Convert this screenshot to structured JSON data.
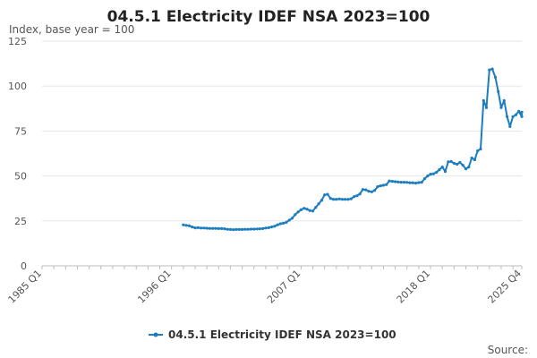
{
  "chart_data": {
    "type": "line",
    "title": "04.5.1 Electricity IDEF NSA 2023=100",
    "subtitle": "Index, base year = 100",
    "source_label": "Source:",
    "ylim": [
      0,
      125
    ],
    "yticks": [
      0,
      25,
      50,
      75,
      100,
      125
    ],
    "xlim": [
      1985,
      2025.75
    ],
    "xticks": [
      {
        "label": "1985 Q1",
        "value": 1985
      },
      {
        "label": "1996 Q1",
        "value": 1996
      },
      {
        "label": "2007 Q1",
        "value": 2007
      },
      {
        "label": "2018 Q1",
        "value": 2018
      },
      {
        "label": "2025 Q4",
        "value": 2025.75
      }
    ],
    "x_grid": false,
    "y_grid": true,
    "legend_position": "bottom-center",
    "series": [
      {
        "name": "04.5.1 Electricity IDEF NSA 2023=100",
        "color": "#1c7dbf",
        "points": [
          [
            1997.0,
            22.8
          ],
          [
            1997.25,
            22.5
          ],
          [
            1997.5,
            22.3
          ],
          [
            1997.75,
            21.6
          ],
          [
            1998.0,
            21.1
          ],
          [
            1998.25,
            21.2
          ],
          [
            1998.5,
            21.0
          ],
          [
            1998.75,
            21.0
          ],
          [
            1999.0,
            20.9
          ],
          [
            1999.25,
            20.8
          ],
          [
            1999.5,
            20.8
          ],
          [
            1999.75,
            20.8
          ],
          [
            2000.0,
            20.7
          ],
          [
            2000.25,
            20.7
          ],
          [
            2000.5,
            20.6
          ],
          [
            2000.75,
            20.3
          ],
          [
            2001.0,
            20.2
          ],
          [
            2001.25,
            20.1
          ],
          [
            2001.5,
            20.2
          ],
          [
            2001.75,
            20.2
          ],
          [
            2002.0,
            20.2
          ],
          [
            2002.25,
            20.3
          ],
          [
            2002.5,
            20.3
          ],
          [
            2002.75,
            20.4
          ],
          [
            2003.0,
            20.4
          ],
          [
            2003.25,
            20.5
          ],
          [
            2003.5,
            20.6
          ],
          [
            2003.75,
            20.7
          ],
          [
            2004.0,
            21.0
          ],
          [
            2004.25,
            21.2
          ],
          [
            2004.5,
            21.6
          ],
          [
            2004.75,
            22.0
          ],
          [
            2005.0,
            22.8
          ],
          [
            2005.25,
            23.4
          ],
          [
            2005.5,
            23.7
          ],
          [
            2005.75,
            24.2
          ],
          [
            2006.0,
            25.4
          ],
          [
            2006.25,
            26.5
          ],
          [
            2006.5,
            28.5
          ],
          [
            2006.75,
            30.0
          ],
          [
            2007.0,
            31.2
          ],
          [
            2007.25,
            32.0
          ],
          [
            2007.5,
            31.5
          ],
          [
            2007.75,
            30.8
          ],
          [
            2008.0,
            30.5
          ],
          [
            2008.25,
            32.5
          ],
          [
            2008.5,
            34.5
          ],
          [
            2008.75,
            36.5
          ],
          [
            2009.0,
            39.5
          ],
          [
            2009.25,
            39.8
          ],
          [
            2009.5,
            37.5
          ],
          [
            2009.75,
            37.0
          ],
          [
            2010.0,
            37.0
          ],
          [
            2010.25,
            37.2
          ],
          [
            2010.5,
            37.0
          ],
          [
            2010.75,
            37.0
          ],
          [
            2011.0,
            37.0
          ],
          [
            2011.25,
            37.3
          ],
          [
            2011.5,
            38.5
          ],
          [
            2011.75,
            39.0
          ],
          [
            2012.0,
            40.0
          ],
          [
            2012.25,
            42.5
          ],
          [
            2012.5,
            42.3
          ],
          [
            2012.75,
            41.5
          ],
          [
            2013.0,
            41.2
          ],
          [
            2013.25,
            42.0
          ],
          [
            2013.5,
            44.0
          ],
          [
            2013.75,
            44.5
          ],
          [
            2014.0,
            44.8
          ],
          [
            2014.25,
            45.2
          ],
          [
            2014.5,
            47.2
          ],
          [
            2014.75,
            47.0
          ],
          [
            2015.0,
            46.8
          ],
          [
            2015.25,
            46.6
          ],
          [
            2015.5,
            46.5
          ],
          [
            2015.75,
            46.5
          ],
          [
            2016.0,
            46.4
          ],
          [
            2016.25,
            46.2
          ],
          [
            2016.5,
            46.2
          ],
          [
            2016.75,
            46.0
          ],
          [
            2017.0,
            46.3
          ],
          [
            2017.25,
            46.5
          ],
          [
            2017.5,
            48.5
          ],
          [
            2017.75,
            50.0
          ],
          [
            2018.0,
            51.0
          ],
          [
            2018.25,
            51.2
          ],
          [
            2018.5,
            52.0
          ],
          [
            2018.75,
            53.5
          ],
          [
            2019.0,
            55.0
          ],
          [
            2019.25,
            52.5
          ],
          [
            2019.5,
            57.8
          ],
          [
            2019.75,
            58.0
          ],
          [
            2020.0,
            57.0
          ],
          [
            2020.25,
            56.5
          ],
          [
            2020.5,
            57.5
          ],
          [
            2020.75,
            56.0
          ],
          [
            2021.0,
            54.0
          ],
          [
            2021.25,
            55.0
          ],
          [
            2021.5,
            60.0
          ],
          [
            2021.75,
            59.0
          ],
          [
            2022.0,
            64.0
          ],
          [
            2022.25,
            65.0
          ],
          [
            2022.5,
            92.0
          ],
          [
            2022.75,
            88.0
          ],
          [
            2023.0,
            109.0
          ],
          [
            2023.25,
            109.5
          ],
          [
            2023.5,
            105.0
          ],
          [
            2023.75,
            97.0
          ],
          [
            2024.0,
            88.0
          ],
          [
            2024.25,
            92.0
          ],
          [
            2024.5,
            83.0
          ],
          [
            2024.75,
            77.5
          ],
          [
            2025.0,
            83.0
          ],
          [
            2025.25,
            84.0
          ],
          [
            2025.5,
            86.0
          ],
          [
            2025.75,
            83.0
          ],
          [
            2026.0,
            85.5
          ]
        ]
      }
    ]
  }
}
